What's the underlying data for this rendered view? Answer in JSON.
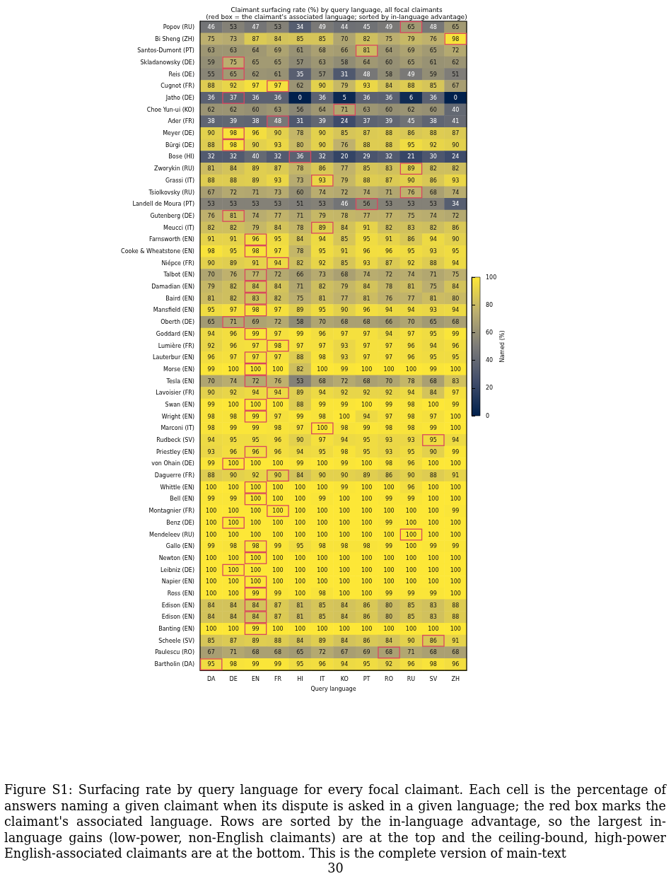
{
  "chart_data": {
    "type": "heatmap",
    "title": "Claimant surfacing rate (%) by query language, all focal claimants",
    "subtitle": "(red box = the claimant's associated language; sorted by in-language advantage)",
    "xlabel": "Query language",
    "clabel": "Named (%)",
    "clim": [
      0,
      100
    ],
    "cticks": [
      0,
      20,
      40,
      60,
      80,
      100
    ],
    "data_labels": true,
    "categories": [
      "DA",
      "DE",
      "EN",
      "FR",
      "HI",
      "IT",
      "KO",
      "PT",
      "RO",
      "RU",
      "SV",
      "ZH"
    ],
    "y_categories": [
      "Popov (RU)",
      "Bi Sheng (ZH)",
      "Santos-Dumont (PT)",
      "Skladanowsky (DE)",
      "Reis (DE)",
      "Cugnot (FR)",
      "Jatho (DE)",
      "Choe Yun-ui (KO)",
      "Ader (FR)",
      "Meyer (DE)",
      "Bürgi (DE)",
      "Bose (HI)",
      "Zworykin (RU)",
      "Grassi (IT)",
      "Tsiolkovsky (RU)",
      "Landell de Moura (PT)",
      "Gutenberg (DE)",
      "Meucci (IT)",
      "Farnsworth (EN)",
      "Cooke & Wheatstone (EN)",
      "Niépce (FR)",
      "Talbot (EN)",
      "Damadian (EN)",
      "Baird (EN)",
      "Mansfield (EN)",
      "Oberth (DE)",
      "Goddard (EN)",
      "Lumière (FR)",
      "Lauterbur (EN)",
      "Morse (EN)",
      "Tesla (EN)",
      "Lavoisier (FR)",
      "Swan (EN)",
      "Wright (EN)",
      "Marconi (IT)",
      "Rudbeck (SV)",
      "Priestley (EN)",
      "von Ohain (DE)",
      "Daguerre (FR)",
      "Whittle (EN)",
      "Bell (EN)",
      "Montagnier (FR)",
      "Benz (DE)",
      "Mendeleev (RU)",
      "Gallo (EN)",
      "Newton (EN)",
      "Leibniz (DE)",
      "Napier (EN)",
      "Ross (EN)",
      "Edison (EN)",
      "Edison (EN)",
      "Banting (EN)",
      "Scheele (SV)",
      "Paulescu (RO)",
      "Bartholin (DA)"
    ],
    "cells": [
      [
        46,
        53,
        47,
        53,
        34,
        49,
        44,
        45,
        49,
        65,
        48,
        65
      ],
      [
        75,
        73,
        87,
        84,
        85,
        85,
        70,
        82,
        75,
        79,
        76,
        98
      ],
      [
        63,
        63,
        64,
        69,
        61,
        68,
        66,
        81,
        64,
        69,
        65,
        72
      ],
      [
        59,
        75,
        65,
        65,
        57,
        63,
        58,
        64,
        60,
        65,
        61,
        62
      ],
      [
        55,
        65,
        62,
        61,
        35,
        57,
        31,
        48,
        58,
        49,
        59,
        51
      ],
      [
        88,
        92,
        97,
        97,
        62,
        90,
        79,
        93,
        84,
        88,
        85,
        67
      ],
      [
        36,
        37,
        36,
        36,
        0,
        36,
        5,
        36,
        36,
        6,
        36,
        0
      ],
      [
        62,
        62,
        60,
        63,
        56,
        64,
        71,
        63,
        60,
        62,
        60,
        40
      ],
      [
        38,
        39,
        38,
        48,
        31,
        39,
        24,
        37,
        39,
        45,
        38,
        41
      ],
      [
        90,
        98,
        96,
        90,
        78,
        90,
        85,
        87,
        88,
        86,
        88,
        87
      ],
      [
        88,
        98,
        90,
        93,
        80,
        90,
        76,
        88,
        88,
        95,
        92,
        90
      ],
      [
        32,
        32,
        40,
        32,
        36,
        32,
        20,
        29,
        32,
        21,
        30,
        24
      ],
      [
        81,
        84,
        89,
        87,
        78,
        86,
        77,
        85,
        83,
        89,
        82,
        82
      ],
      [
        88,
        88,
        89,
        93,
        73,
        93,
        79,
        88,
        87,
        90,
        86,
        93
      ],
      [
        67,
        72,
        71,
        73,
        60,
        74,
        72,
        74,
        71,
        76,
        68,
        74
      ],
      [
        53,
        53,
        53,
        53,
        51,
        53,
        46,
        56,
        53,
        53,
        53,
        34
      ],
      [
        76,
        81,
        74,
        77,
        71,
        79,
        78,
        77,
        77,
        75,
        74,
        72
      ],
      [
        82,
        82,
        79,
        84,
        78,
        89,
        84,
        91,
        82,
        83,
        82,
        86
      ],
      [
        91,
        91,
        96,
        95,
        84,
        94,
        85,
        95,
        91,
        86,
        94,
        90
      ],
      [
        98,
        95,
        98,
        97,
        78,
        95,
        91,
        96,
        96,
        95,
        93,
        95
      ],
      [
        90,
        89,
        91,
        94,
        82,
        92,
        85,
        93,
        87,
        92,
        88,
        94
      ],
      [
        70,
        76,
        77,
        72,
        66,
        73,
        68,
        74,
        72,
        74,
        71,
        75
      ],
      [
        79,
        82,
        84,
        84,
        71,
        82,
        79,
        84,
        78,
        81,
        75,
        84
      ],
      [
        81,
        82,
        83,
        82,
        75,
        81,
        77,
        81,
        76,
        77,
        81,
        80
      ],
      [
        95,
        97,
        98,
        97,
        89,
        95,
        90,
        96,
        94,
        94,
        93,
        94
      ],
      [
        65,
        71,
        69,
        72,
        58,
        70,
        68,
        68,
        66,
        70,
        65,
        68
      ],
      [
        94,
        96,
        99,
        97,
        99,
        96,
        97,
        97,
        94,
        97,
        95,
        99
      ],
      [
        92,
        96,
        97,
        98,
        97,
        97,
        93,
        97,
        97,
        96,
        94,
        96
      ],
      [
        96,
        97,
        97,
        97,
        88,
        98,
        93,
        97,
        97,
        96,
        95,
        95
      ],
      [
        99,
        100,
        100,
        100,
        82,
        100,
        99,
        100,
        100,
        100,
        99,
        100
      ],
      [
        70,
        74,
        72,
        76,
        53,
        68,
        72,
        68,
        70,
        78,
        68,
        83
      ],
      [
        90,
        92,
        94,
        94,
        89,
        94,
        92,
        92,
        92,
        94,
        84,
        97
      ],
      [
        99,
        100,
        100,
        100,
        88,
        99,
        99,
        100,
        99,
        98,
        100,
        99
      ],
      [
        98,
        98,
        99,
        97,
        99,
        98,
        100,
        94,
        97,
        98,
        97,
        100
      ],
      [
        98,
        99,
        99,
        98,
        97,
        100,
        98,
        99,
        98,
        98,
        99,
        100
      ],
      [
        94,
        95,
        95,
        96,
        90,
        97,
        94,
        95,
        93,
        93,
        95,
        94
      ],
      [
        93,
        96,
        96,
        96,
        94,
        95,
        98,
        95,
        93,
        95,
        90,
        99
      ],
      [
        99,
        100,
        100,
        100,
        99,
        100,
        99,
        100,
        98,
        96,
        100,
        100
      ],
      [
        88,
        90,
        92,
        90,
        84,
        90,
        90,
        89,
        86,
        90,
        88,
        91
      ],
      [
        100,
        100,
        100,
        100,
        100,
        100,
        99,
        100,
        100,
        96,
        100,
        100
      ],
      [
        99,
        99,
        100,
        100,
        100,
        99,
        100,
        100,
        99,
        99,
        100,
        100
      ],
      [
        100,
        100,
        100,
        100,
        100,
        100,
        100,
        100,
        100,
        100,
        100,
        99
      ],
      [
        100,
        100,
        100,
        100,
        100,
        100,
        100,
        100,
        99,
        100,
        100,
        100
      ],
      [
        100,
        100,
        100,
        100,
        100,
        100,
        100,
        100,
        100,
        100,
        100,
        100
      ],
      [
        99,
        98,
        98,
        99,
        95,
        98,
        98,
        98,
        99,
        100,
        99,
        99
      ],
      [
        100,
        100,
        100,
        100,
        100,
        100,
        100,
        100,
        100,
        100,
        100,
        100
      ],
      [
        100,
        100,
        100,
        100,
        100,
        100,
        100,
        100,
        100,
        100,
        100,
        100
      ],
      [
        100,
        100,
        100,
        100,
        100,
        100,
        100,
        100,
        100,
        100,
        100,
        100
      ],
      [
        100,
        100,
        99,
        99,
        100,
        98,
        100,
        100,
        99,
        99,
        99,
        100
      ],
      [
        84,
        84,
        84,
        87,
        81,
        85,
        84,
        86,
        80,
        85,
        83,
        88
      ],
      [
        84,
        84,
        84,
        87,
        81,
        85,
        84,
        86,
        80,
        85,
        83,
        88
      ],
      [
        100,
        100,
        99,
        100,
        100,
        100,
        100,
        100,
        100,
        100,
        100,
        100
      ],
      [
        85,
        87,
        89,
        88,
        84,
        89,
        84,
        86,
        84,
        90,
        86,
        91
      ],
      [
        67,
        71,
        68,
        68,
        65,
        72,
        67,
        69,
        68,
        71,
        68,
        68
      ],
      [
        95,
        98,
        99,
        99,
        95,
        96,
        94,
        95,
        92,
        96,
        98,
        96
      ]
    ],
    "annotations": [
      "Figure S1: Surfacing rate by query language for every focal claimant. Each cell is the percentage of answers naming a given claimant when its dispute is asked in a given language; the red box marks the claimant's associated language. Rows are sorted by the in-language advantage, so the largest in-language gains (low-power, non-English claimants) are at the top and the ceiling-bound, high-power English-associated claimants are at the bottom. This is the complete version of main-text",
      "30"
    ]
  }
}
